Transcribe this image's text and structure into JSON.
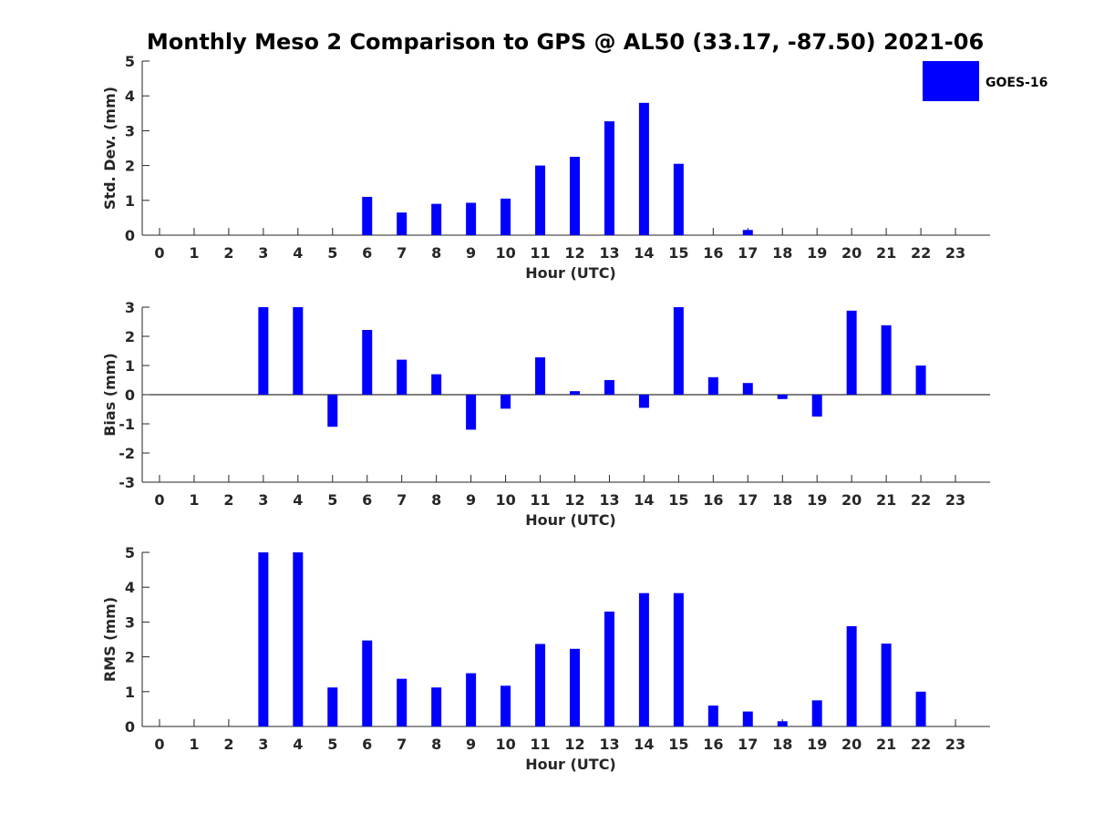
{
  "title": "Monthly Meso 2 Comparison to GPS @ AL50 (33.17, -87.50) 2021-06",
  "legend": {
    "label": "GOES-16",
    "color": "#0000ff"
  },
  "chart_data": [
    {
      "type": "bar",
      "name": "std-dev",
      "xlabel": "Hour (UTC)",
      "ylabel": "Std. Dev. (mm)",
      "ylim": [
        0,
        5
      ],
      "yticks": [
        0,
        1,
        2,
        3,
        4,
        5
      ],
      "categories": [
        "0",
        "1",
        "2",
        "3",
        "4",
        "5",
        "6",
        "7",
        "8",
        "9",
        "10",
        "11",
        "12",
        "13",
        "14",
        "15",
        "16",
        "17",
        "18",
        "19",
        "20",
        "21",
        "22",
        "23"
      ],
      "series": [
        {
          "name": "GOES-16",
          "color": "#0000ff",
          "values": [
            null,
            null,
            null,
            0,
            0,
            null,
            1.1,
            0.65,
            0.9,
            0.93,
            1.05,
            2.0,
            2.25,
            3.27,
            3.8,
            2.05,
            null,
            0.15,
            null,
            null,
            0,
            0,
            null,
            null
          ]
        }
      ],
      "legend_position": "top-right",
      "grid": false
    },
    {
      "type": "bar",
      "name": "bias",
      "xlabel": "Hour (UTC)",
      "ylabel": "Bias (mm)",
      "ylim": [
        -3,
        3
      ],
      "yticks": [
        -3,
        -2,
        -1,
        0,
        1,
        2,
        3
      ],
      "categories": [
        "0",
        "1",
        "2",
        "3",
        "4",
        "5",
        "6",
        "7",
        "8",
        "9",
        "10",
        "11",
        "12",
        "13",
        "14",
        "15",
        "16",
        "17",
        "18",
        "19",
        "20",
        "21",
        "22",
        "23"
      ],
      "series": [
        {
          "name": "GOES-16",
          "color": "#0000ff",
          "values": [
            null,
            null,
            null,
            3.0,
            3.0,
            -1.1,
            2.22,
            1.2,
            0.7,
            -1.2,
            -0.48,
            1.28,
            0.12,
            0.5,
            -0.45,
            3.0,
            0.6,
            0.4,
            -0.15,
            -0.75,
            2.88,
            2.38,
            1.0,
            null
          ]
        }
      ],
      "grid": false
    },
    {
      "type": "bar",
      "name": "rms",
      "xlabel": "Hour (UTC)",
      "ylabel": "RMS (mm)",
      "ylim": [
        0,
        5
      ],
      "yticks": [
        0,
        1,
        2,
        3,
        4,
        5
      ],
      "categories": [
        "0",
        "1",
        "2",
        "3",
        "4",
        "5",
        "6",
        "7",
        "8",
        "9",
        "10",
        "11",
        "12",
        "13",
        "14",
        "15",
        "16",
        "17",
        "18",
        "19",
        "20",
        "21",
        "22",
        "23"
      ],
      "series": [
        {
          "name": "GOES-16",
          "color": "#0000ff",
          "values": [
            null,
            null,
            null,
            5.0,
            5.0,
            1.12,
            2.47,
            1.37,
            1.12,
            1.53,
            1.17,
            2.37,
            2.23,
            3.3,
            3.83,
            3.83,
            0.6,
            0.43,
            0.15,
            0.75,
            2.88,
            2.38,
            1.0,
            null
          ]
        }
      ],
      "grid": false
    }
  ]
}
